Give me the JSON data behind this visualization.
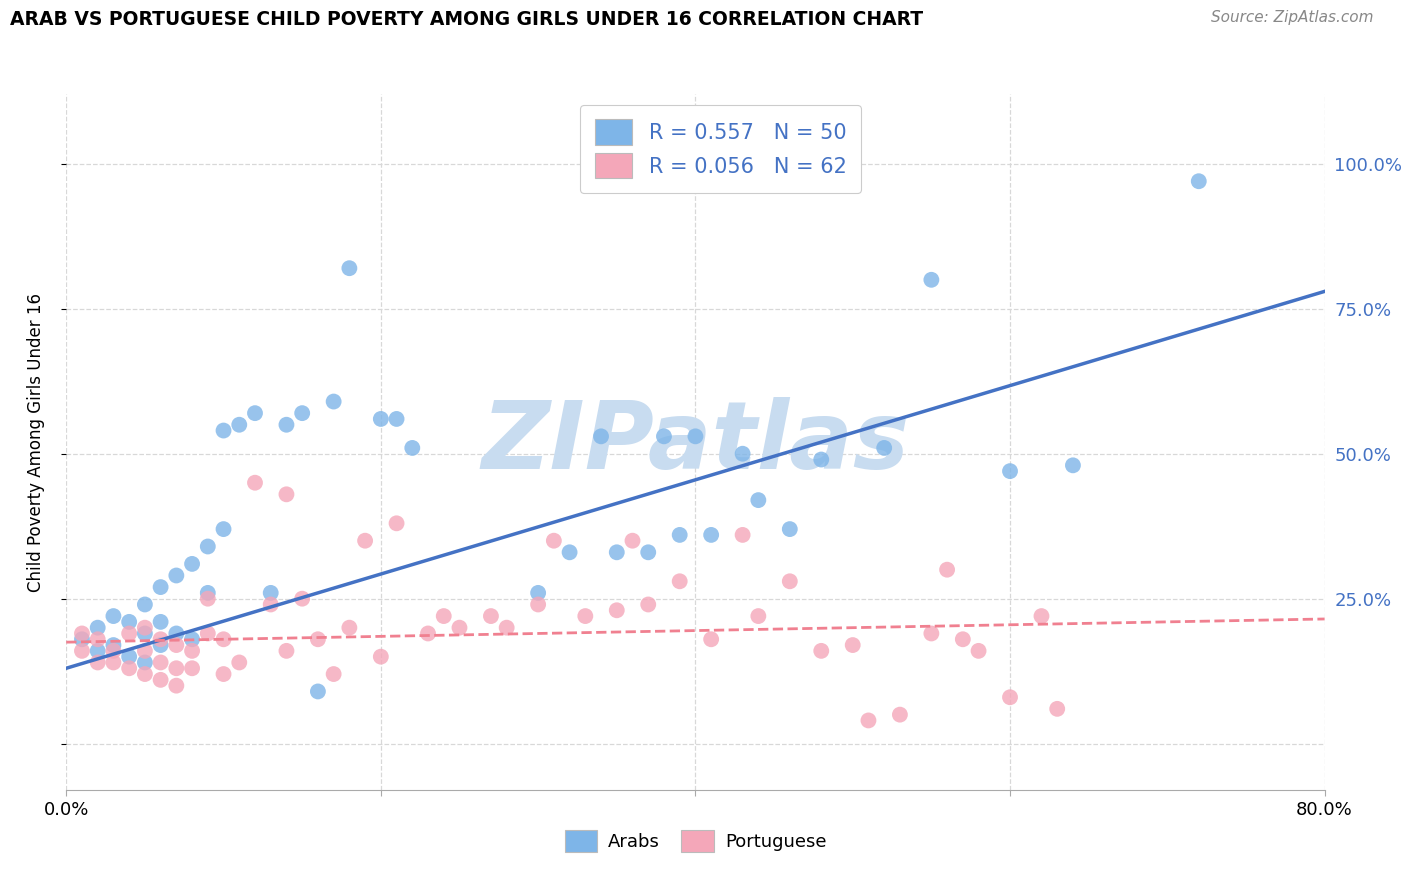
{
  "title": "ARAB VS PORTUGUESE CHILD POVERTY AMONG GIRLS UNDER 16 CORRELATION CHART",
  "source": "Source: ZipAtlas.com",
  "ylabel": "Child Poverty Among Girls Under 16",
  "xlim": [
    0.0,
    0.8
  ],
  "ylim": [
    -0.08,
    1.12
  ],
  "ytick_positions": [
    0.0,
    0.25,
    0.5,
    0.75,
    1.0
  ],
  "ytick_labels_right": [
    "",
    "25.0%",
    "50.0%",
    "75.0%",
    "100.0%"
  ],
  "arab_color": "#7EB5E8",
  "portuguese_color": "#F4A7B9",
  "arab_line_color": "#4472C4",
  "portuguese_line_color": "#F08090",
  "legend_text_color": "#4472C4",
  "watermark_color": "#C8DCF0",
  "arab_R": 0.557,
  "arab_N": 50,
  "portuguese_R": 0.056,
  "portuguese_N": 62,
  "arab_x": [
    0.01,
    0.02,
    0.02,
    0.03,
    0.03,
    0.04,
    0.04,
    0.05,
    0.05,
    0.05,
    0.06,
    0.06,
    0.06,
    0.07,
    0.07,
    0.08,
    0.08,
    0.09,
    0.09,
    0.1,
    0.1,
    0.11,
    0.12,
    0.13,
    0.14,
    0.15,
    0.16,
    0.17,
    0.18,
    0.2,
    0.21,
    0.22,
    0.3,
    0.32,
    0.34,
    0.35,
    0.37,
    0.38,
    0.39,
    0.4,
    0.41,
    0.43,
    0.44,
    0.46,
    0.48,
    0.52,
    0.55,
    0.6,
    0.64,
    0.72
  ],
  "arab_y": [
    0.18,
    0.16,
    0.2,
    0.17,
    0.22,
    0.15,
    0.21,
    0.14,
    0.19,
    0.24,
    0.17,
    0.21,
    0.27,
    0.19,
    0.29,
    0.18,
    0.31,
    0.34,
    0.26,
    0.54,
    0.37,
    0.55,
    0.57,
    0.26,
    0.55,
    0.57,
    0.09,
    0.59,
    0.82,
    0.56,
    0.56,
    0.51,
    0.26,
    0.33,
    0.53,
    0.33,
    0.33,
    0.53,
    0.36,
    0.53,
    0.36,
    0.5,
    0.42,
    0.37,
    0.49,
    0.51,
    0.8,
    0.47,
    0.48,
    0.97
  ],
  "portuguese_x": [
    0.01,
    0.01,
    0.02,
    0.02,
    0.03,
    0.03,
    0.04,
    0.04,
    0.05,
    0.05,
    0.05,
    0.06,
    0.06,
    0.06,
    0.07,
    0.07,
    0.07,
    0.08,
    0.08,
    0.09,
    0.09,
    0.1,
    0.1,
    0.11,
    0.12,
    0.13,
    0.14,
    0.14,
    0.15,
    0.16,
    0.17,
    0.18,
    0.19,
    0.2,
    0.21,
    0.23,
    0.24,
    0.25,
    0.27,
    0.28,
    0.3,
    0.31,
    0.33,
    0.35,
    0.36,
    0.37,
    0.39,
    0.41,
    0.43,
    0.44,
    0.46,
    0.48,
    0.5,
    0.51,
    0.53,
    0.55,
    0.56,
    0.57,
    0.58,
    0.6,
    0.62,
    0.63
  ],
  "portuguese_y": [
    0.16,
    0.19,
    0.14,
    0.18,
    0.14,
    0.16,
    0.13,
    0.19,
    0.12,
    0.16,
    0.2,
    0.11,
    0.14,
    0.18,
    0.1,
    0.13,
    0.17,
    0.13,
    0.16,
    0.19,
    0.25,
    0.12,
    0.18,
    0.14,
    0.45,
    0.24,
    0.16,
    0.43,
    0.25,
    0.18,
    0.12,
    0.2,
    0.35,
    0.15,
    0.38,
    0.19,
    0.22,
    0.2,
    0.22,
    0.2,
    0.24,
    0.35,
    0.22,
    0.23,
    0.35,
    0.24,
    0.28,
    0.18,
    0.36,
    0.22,
    0.28,
    0.16,
    0.17,
    0.04,
    0.05,
    0.19,
    0.3,
    0.18,
    0.16,
    0.08,
    0.22,
    0.06
  ],
  "background_color": "#FFFFFF",
  "grid_color": "#D8D8D8",
  "arab_line_x": [
    0.0,
    0.8
  ],
  "arab_line_y": [
    0.13,
    0.78
  ],
  "port_line_x": [
    0.0,
    0.8
  ],
  "port_line_y": [
    0.175,
    0.215
  ]
}
